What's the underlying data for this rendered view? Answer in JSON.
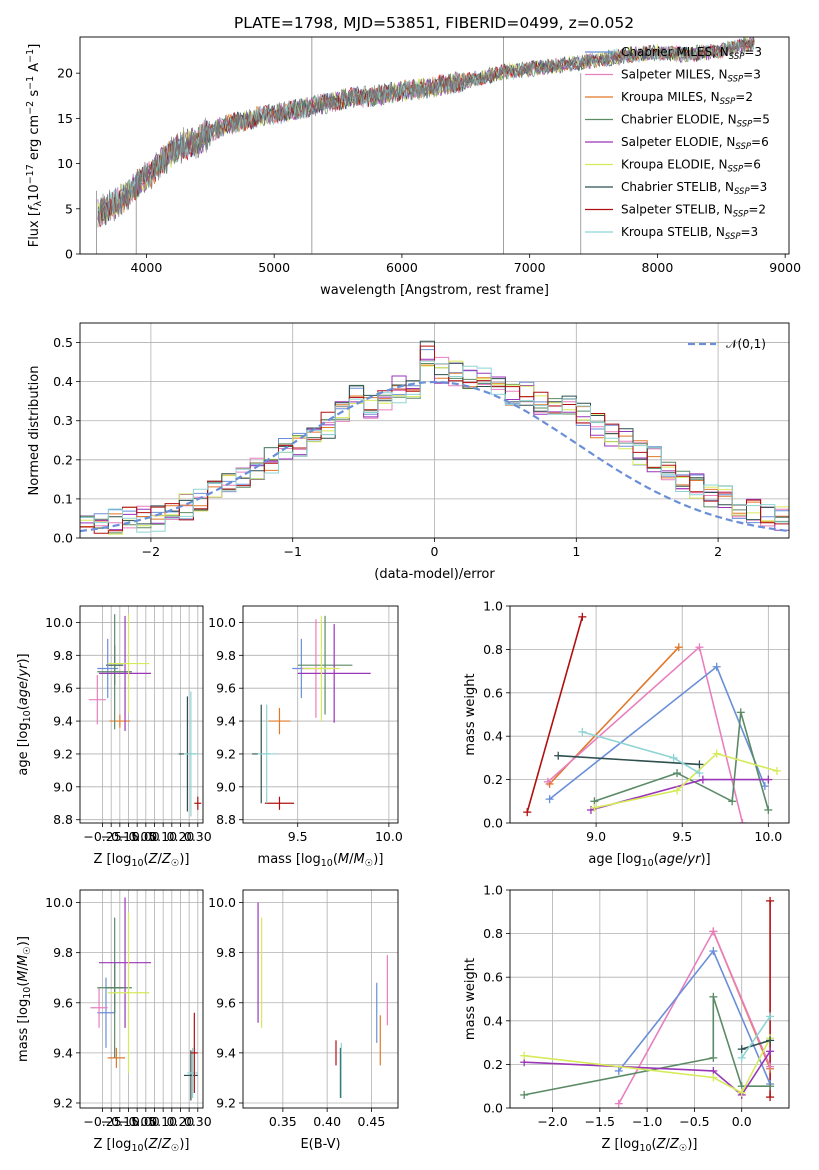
{
  "figure": {
    "title": "PLATE=1798, MJD=53851, FIBERID=0499, z=0.052"
  },
  "chart_data": [
    {
      "type": "line",
      "title": "PLATE=1798, MJD=53851, FIBERID=0499, z=0.052",
      "xlabel": "wavelength [Angstrom, rest frame]",
      "ylabel": "Flux [fλ10⁻¹⁷ erg cm⁻² s⁻¹ A⁻¹]",
      "xlim": [
        3480,
        9030
      ],
      "ylim": [
        0,
        24
      ],
      "xticks": [
        4000,
        5000,
        6000,
        7000,
        8000,
        9000
      ],
      "yticks": [
        0,
        5,
        10,
        15,
        20
      ],
      "grid": false,
      "legend": "top-right",
      "spectrum": {
        "x": [
          3620,
          3700,
          3800,
          3900,
          4000,
          4100,
          4200,
          4300,
          4400,
          4500,
          4600,
          4800,
          5000,
          5200,
          5400,
          5600,
          5800,
          6000,
          6200,
          6400,
          6600,
          6800,
          7000,
          7200,
          7400,
          7600,
          7800,
          8000,
          8200,
          8400,
          8600,
          8760
        ],
        "y": [
          4.5,
          5.0,
          6.0,
          7.3,
          8.5,
          10.0,
          11.3,
          12.1,
          12.5,
          13.4,
          14.1,
          14.9,
          15.5,
          16.0,
          16.7,
          17.2,
          17.6,
          18.0,
          18.4,
          18.9,
          19.4,
          20.1,
          20.5,
          20.8,
          21.2,
          21.6,
          22.0,
          22.3,
          22.1,
          22.3,
          22.8,
          23.4
        ]
      },
      "series": [
        {
          "name": "Chabrier MILES, N_SSP=3",
          "color": "#6a8fd8"
        },
        {
          "name": "Salpeter MILES, N_SSP=3",
          "color": "#e87fbf"
        },
        {
          "name": "Kroupa MILES, N_SSP=2",
          "color": "#e0782a"
        },
        {
          "name": "Chabrier ELODIE, N_SSP=5",
          "color": "#5b8a66"
        },
        {
          "name": "Salpeter ELODIE, N_SSP=6",
          "color": "#9a36b8"
        },
        {
          "name": "Kroupa ELODIE, N_SSP=6",
          "color": "#d6ea5a"
        },
        {
          "name": "Chabrier STELIB, N_SSP=3",
          "color": "#2f4f4f"
        },
        {
          "name": "Salpeter STELIB, N_SSP=2",
          "color": "#b01010"
        },
        {
          "name": "Kroupa STELIB, N_SSP=3",
          "color": "#8fd4d4"
        }
      ]
    },
    {
      "type": "line",
      "xlabel": "(data-model)/error",
      "ylabel": "Normed distribution",
      "xlim": [
        -2.5,
        2.5
      ],
      "ylim": [
        0,
        0.55
      ],
      "xticks": [
        -2,
        -1,
        0,
        1,
        2
      ],
      "yticks": [
        0.0,
        0.1,
        0.2,
        0.3,
        0.4,
        0.5
      ],
      "grid": true,
      "legend": "top-right",
      "reference": {
        "name": "𝒩(0,1)",
        "color": "#6a8fd8",
        "dashed": true
      },
      "bin_width": 0.1,
      "histogram": {
        "x_start": -2.5,
        "values": [
          0.03,
          0.04,
          0.04,
          0.05,
          0.05,
          0.05,
          0.06,
          0.08,
          0.1,
          0.12,
          0.13,
          0.15,
          0.17,
          0.2,
          0.22,
          0.24,
          0.27,
          0.29,
          0.32,
          0.36,
          0.34,
          0.36,
          0.38,
          0.39,
          0.47,
          0.43,
          0.42,
          0.41,
          0.4,
          0.38,
          0.37,
          0.37,
          0.35,
          0.34,
          0.33,
          0.31,
          0.29,
          0.27,
          0.25,
          0.22,
          0.2,
          0.18,
          0.15,
          0.13,
          0.11,
          0.1,
          0.08,
          0.07,
          0.06,
          0.05
        ]
      }
    },
    {
      "type": "scatter",
      "xlabel": "Z [log10(Z/Z☉)]",
      "ylabel": "age  [log10(age/yr)]",
      "xlim": [
        -0.38,
        0.33
      ],
      "ylim": [
        8.78,
        10.1
      ],
      "xticks": [
        -0.25,
        -0.2,
        -0.15,
        -0.1,
        -0.05,
        0.0,
        0.05,
        0.1,
        0.15,
        0.2,
        0.25,
        0.3
      ],
      "xticklabels": [
        "−0.25",
        "",
        "−0.15",
        "",
        "−0.05",
        "0.00",
        "",
        "0.10",
        "",
        "0.20",
        "",
        "0.30"
      ],
      "yticks": [
        8.8,
        9.0,
        9.2,
        9.4,
        9.6,
        9.8,
        10.0
      ],
      "grid": true,
      "points": [
        {
          "x": -0.18,
          "y": 9.74,
          "xerr": 0.05,
          "yerr": 0.12,
          "color": "#2f4f4f"
        },
        {
          "x": -0.22,
          "y": 9.72,
          "xerr": 0.06,
          "yerr": 0.18,
          "color": "#6a8fd8"
        },
        {
          "x": -0.28,
          "y": 9.53,
          "xerr": 0.05,
          "yerr": 0.15,
          "color": "#e87fbf"
        },
        {
          "x": -0.15,
          "y": 9.4,
          "xerr": 0.06,
          "yerr": 0.04,
          "color": "#e0782a"
        },
        {
          "x": -0.18,
          "y": 9.7,
          "xerr": 0.1,
          "yerr": 0.35,
          "color": "#5b8a66"
        },
        {
          "x": -0.12,
          "y": 9.69,
          "xerr": 0.15,
          "yerr": 0.35,
          "color": "#9a36b8"
        },
        {
          "x": -0.1,
          "y": 9.75,
          "xerr": 0.12,
          "yerr": 0.3,
          "color": "#d6ea5a"
        },
        {
          "x": 0.24,
          "y": 9.2,
          "xerr": 0.05,
          "yerr": 0.35,
          "color": "#2f4f4f"
        },
        {
          "x": 0.26,
          "y": 9.2,
          "xerr": 0.04,
          "yerr": 0.38,
          "color": "#8fd4d4"
        },
        {
          "x": 0.3,
          "y": 8.9,
          "xerr": 0.02,
          "yerr": 0.04,
          "color": "#b01010"
        }
      ]
    },
    {
      "type": "scatter",
      "xlabel": "mass [log10(M/M☉)]",
      "xlim": [
        9.2,
        10.05
      ],
      "ylim": [
        8.78,
        10.1
      ],
      "xticks": [
        9.5,
        10.0
      ],
      "yticks": [
        8.8,
        9.0,
        9.2,
        9.4,
        9.6,
        9.8,
        10.0
      ],
      "grid": true,
      "points": [
        {
          "x": 9.3,
          "y": 9.2,
          "xerr": 0.05,
          "yerr": 0.3,
          "color": "#2f4f4f"
        },
        {
          "x": 9.4,
          "y": 9.4,
          "xerr": 0.06,
          "yerr": 0.08,
          "color": "#e0782a"
        },
        {
          "x": 9.4,
          "y": 8.9,
          "xerr": 0.08,
          "yerr": 0.04,
          "color": "#b01010"
        },
        {
          "x": 9.33,
          "y": 9.2,
          "xerr": 0.05,
          "yerr": 0.3,
          "color": "#8fd4d4"
        },
        {
          "x": 9.52,
          "y": 9.72,
          "xerr": 0.05,
          "yerr": 0.18,
          "color": "#6a8fd8"
        },
        {
          "x": 9.6,
          "y": 9.72,
          "xerr": 0.08,
          "yerr": 0.3,
          "color": "#e87fbf"
        },
        {
          "x": 9.65,
          "y": 9.74,
          "xerr": 0.15,
          "yerr": 0.3,
          "color": "#5b8a66"
        },
        {
          "x": 9.7,
          "y": 9.69,
          "xerr": 0.2,
          "yerr": 0.3,
          "color": "#9a36b8"
        },
        {
          "x": 9.63,
          "y": 9.72,
          "xerr": 0.1,
          "yerr": 0.32,
          "color": "#d6ea5a"
        }
      ]
    },
    {
      "type": "line",
      "xlabel": "age  [log10(age/yr)]",
      "ylabel": "mass weight",
      "xlim": [
        8.5,
        10.12
      ],
      "ylim": [
        0,
        1.0
      ],
      "xticks": [
        9.0,
        9.5,
        10.0
      ],
      "yticks": [
        0.0,
        0.2,
        0.4,
        0.6,
        0.8,
        1.0
      ],
      "grid": true,
      "series": [
        {
          "color": "#b01010",
          "x": [
            8.6,
            8.92
          ],
          "y": [
            0.05,
            0.95
          ]
        },
        {
          "color": "#e0782a",
          "x": [
            8.73,
            9.48
          ],
          "y": [
            0.18,
            0.81
          ]
        },
        {
          "color": "#e87fbf",
          "x": [
            8.72,
            9.6,
            9.85
          ],
          "y": [
            0.19,
            0.81,
            0.0
          ]
        },
        {
          "color": "#6a8fd8",
          "x": [
            8.73,
            9.7,
            9.98
          ],
          "y": [
            0.11,
            0.72,
            0.17
          ]
        },
        {
          "color": "#5b8a66",
          "x": [
            8.99,
            9.47,
            9.79,
            9.84,
            10.0
          ],
          "y": [
            0.1,
            0.23,
            0.1,
            0.51,
            0.06
          ]
        },
        {
          "color": "#9a36b8",
          "x": [
            8.97,
            9.62,
            10.0
          ],
          "y": [
            0.06,
            0.2,
            0.2
          ]
        },
        {
          "color": "#d6ea5a",
          "x": [
            8.99,
            9.47,
            9.7,
            10.05
          ],
          "y": [
            0.07,
            0.15,
            0.32,
            0.24
          ]
        },
        {
          "color": "#2f4f4f",
          "x": [
            8.78,
            9.6
          ],
          "y": [
            0.31,
            0.27
          ]
        },
        {
          "color": "#8fd4d4",
          "x": [
            8.92,
            9.45,
            9.6
          ],
          "y": [
            0.42,
            0.3,
            0.23
          ]
        }
      ]
    },
    {
      "type": "scatter",
      "xlabel": "Z [log10(Z/Z☉)]",
      "ylabel": "mass [log10(M/M☉)]",
      "xlim": [
        -0.38,
        0.33
      ],
      "ylim": [
        9.18,
        10.05
      ],
      "xticks": [
        -0.25,
        -0.2,
        -0.15,
        -0.1,
        -0.05,
        0.0,
        0.05,
        0.1,
        0.15,
        0.2,
        0.25,
        0.3
      ],
      "xticklabels": [
        "−0.25",
        "",
        "−0.15",
        "",
        "−0.05",
        "0.00",
        "",
        "0.10",
        "",
        "0.20",
        "",
        "0.30"
      ],
      "yticks": [
        9.2,
        9.4,
        9.6,
        9.8,
        10.0
      ],
      "grid": true,
      "points": [
        {
          "x": -0.18,
          "y": 9.66,
          "xerr": 0.05,
          "yerr": 0.1,
          "color": "#2f4f4f"
        },
        {
          "x": -0.23,
          "y": 9.56,
          "xerr": 0.05,
          "yerr": 0.14,
          "color": "#6a8fd8"
        },
        {
          "x": -0.27,
          "y": 9.58,
          "xerr": 0.05,
          "yerr": 0.08,
          "color": "#e87fbf"
        },
        {
          "x": -0.17,
          "y": 9.38,
          "xerr": 0.05,
          "yerr": 0.04,
          "color": "#e0782a"
        },
        {
          "x": -0.18,
          "y": 9.66,
          "xerr": 0.1,
          "yerr": 0.28,
          "color": "#5b8a66"
        },
        {
          "x": -0.12,
          "y": 9.76,
          "xerr": 0.15,
          "yerr": 0.26,
          "color": "#9a36b8"
        },
        {
          "x": -0.1,
          "y": 9.64,
          "xerr": 0.12,
          "yerr": 0.32,
          "color": "#d6ea5a"
        },
        {
          "x": 0.26,
          "y": 9.31,
          "xerr": 0.04,
          "yerr": 0.1,
          "color": "#2f4f4f"
        },
        {
          "x": 0.27,
          "y": 9.32,
          "xerr": 0.03,
          "yerr": 0.1,
          "color": "#8fd4d4"
        },
        {
          "x": 0.28,
          "y": 9.4,
          "xerr": 0.02,
          "yerr": 0.16,
          "color": "#b01010"
        }
      ]
    },
    {
      "type": "scatter",
      "xlabel": "E(B-V)",
      "xlim": [
        0.305,
        0.48
      ],
      "ylim": [
        9.18,
        10.05
      ],
      "xticks": [
        0.35,
        0.4,
        0.45
      ],
      "yticks": [
        9.2,
        9.4,
        9.6,
        9.8,
        10.0
      ],
      "grid": true,
      "points": [
        {
          "x": 0.322,
          "y": 9.76,
          "xerr": 0,
          "yerr": 0.24,
          "color": "#9a36b8"
        },
        {
          "x": 0.326,
          "y": 9.72,
          "xerr": 0,
          "yerr": 0.22,
          "color": "#d6ea5a"
        },
        {
          "x": 0.41,
          "y": 9.4,
          "xerr": 0,
          "yerr": 0.05,
          "color": "#b01010"
        },
        {
          "x": 0.415,
          "y": 9.32,
          "xerr": 0,
          "yerr": 0.1,
          "color": "#2f4f4f"
        },
        {
          "x": 0.416,
          "y": 9.33,
          "xerr": 0,
          "yerr": 0.11,
          "color": "#8fd4d4"
        },
        {
          "x": 0.456,
          "y": 9.56,
          "xerr": 0,
          "yerr": 0.12,
          "color": "#6a8fd8"
        },
        {
          "x": 0.46,
          "y": 9.45,
          "xerr": 0,
          "yerr": 0.1,
          "color": "#e0782a"
        },
        {
          "x": 0.468,
          "y": 9.65,
          "xerr": 0,
          "yerr": 0.14,
          "color": "#e87fbf"
        }
      ]
    },
    {
      "type": "line",
      "xlabel": "Z [log10(Z/Z☉)]",
      "ylabel": "mass weight",
      "xlim": [
        -2.45,
        0.5
      ],
      "ylim": [
        0,
        1.0
      ],
      "xticks": [
        -2.0,
        -1.5,
        -1.0,
        -0.5,
        0.0
      ],
      "yticks": [
        0.0,
        0.2,
        0.4,
        0.6,
        0.8,
        1.0
      ],
      "grid": true,
      "series": [
        {
          "color": "#b01010",
          "x": [
            0.3,
            0.3
          ],
          "y": [
            0.05,
            0.95
          ]
        },
        {
          "color": "#e0782a",
          "x": [
            -0.3,
            0.3
          ],
          "y": [
            0.81,
            0.18
          ]
        },
        {
          "color": "#e87fbf",
          "x": [
            -1.3,
            -0.3,
            0.3
          ],
          "y": [
            0.02,
            0.81,
            0.19
          ]
        },
        {
          "color": "#6a8fd8",
          "x": [
            -1.3,
            -0.3,
            0.3
          ],
          "y": [
            0.17,
            0.72,
            0.11
          ]
        },
        {
          "color": "#5b8a66",
          "x": [
            -2.3,
            -0.3,
            -0.3,
            0.0,
            0.3
          ],
          "y": [
            0.06,
            0.23,
            0.51,
            0.1,
            0.1
          ]
        },
        {
          "color": "#9a36b8",
          "x": [
            -2.3,
            -0.3,
            0.0,
            0.3
          ],
          "y": [
            0.21,
            0.17,
            0.06,
            0.26
          ]
        },
        {
          "color": "#d6ea5a",
          "x": [
            -2.3,
            -0.3,
            0.0,
            0.3
          ],
          "y": [
            0.24,
            0.14,
            0.07,
            0.32
          ]
        },
        {
          "color": "#2f4f4f",
          "x": [
            0.0,
            0.3
          ],
          "y": [
            0.27,
            0.31
          ]
        },
        {
          "color": "#8fd4d4",
          "x": [
            0.0,
            0.3
          ],
          "y": [
            0.23,
            0.42
          ]
        }
      ]
    }
  ]
}
